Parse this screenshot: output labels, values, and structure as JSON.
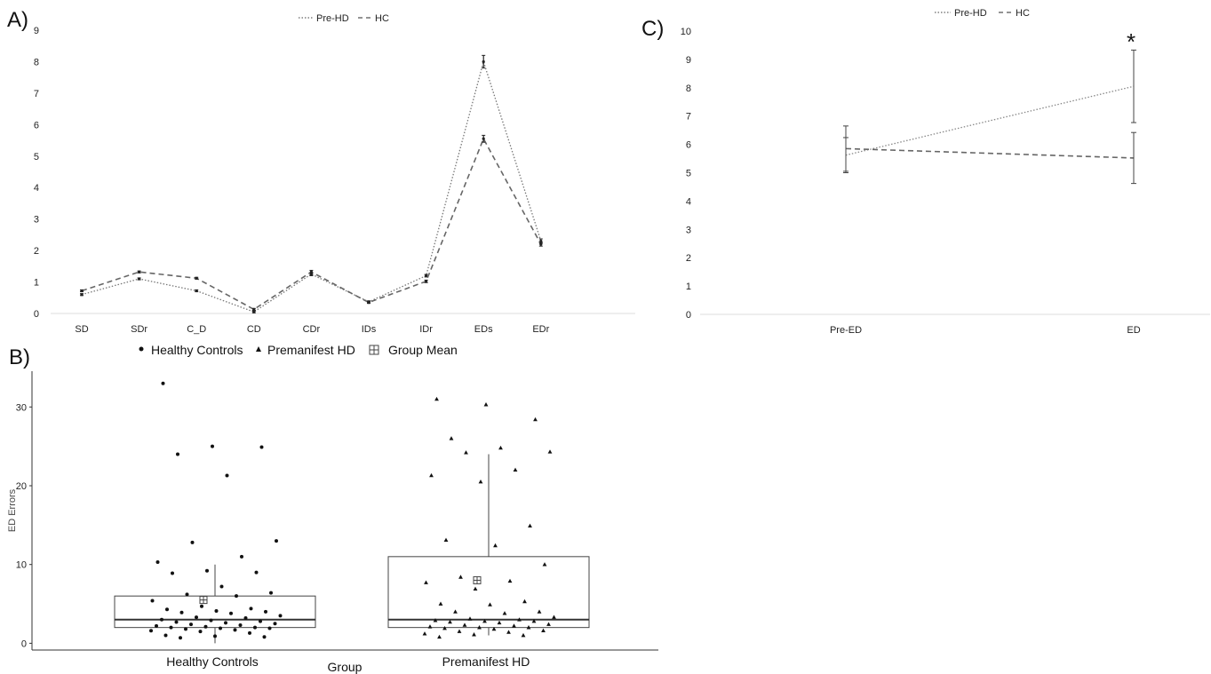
{
  "chart_data": [
    {
      "panel": "A)",
      "type": "line",
      "categories": [
        "SD",
        "SDr",
        "C_D",
        "CD",
        "CDr",
        "IDs",
        "IDr",
        "EDs",
        "EDr"
      ],
      "yticks": [
        "0",
        "1",
        "2",
        "3",
        "4",
        "5",
        "6",
        "7",
        "8",
        "9"
      ],
      "ylim": [
        0,
        9
      ],
      "legend": [
        "Pre-HD",
        "HC"
      ],
      "legend_position": "top-center",
      "series": [
        {
          "name": "Pre-HD",
          "style": "dotted",
          "values": [
            0.6,
            1.1,
            0.72,
            0.05,
            1.25,
            0.37,
            1.2,
            8.0,
            2.3
          ],
          "err": [
            0.03,
            0.03,
            0.03,
            0.03,
            0.05,
            0.03,
            0.04,
            0.2,
            0.07
          ]
        },
        {
          "name": "HC",
          "style": "dashed",
          "values": [
            0.72,
            1.32,
            1.12,
            0.13,
            1.32,
            0.35,
            1.02,
            5.55,
            2.2
          ],
          "err": [
            0.03,
            0.03,
            0.03,
            0.03,
            0.05,
            0.03,
            0.04,
            0.11,
            0.06
          ]
        }
      ]
    },
    {
      "panel": "B)",
      "type": "scatter",
      "ylabel": "ED Errors",
      "xlabel": "Group",
      "categories": [
        "Healthy Controls",
        "Premanifest HD"
      ],
      "yticks": [
        "0",
        "10",
        "20",
        "30"
      ],
      "ylim": [
        -1,
        35
      ],
      "legend": [
        "Healthy Controls",
        "Premanifest HD",
        "Group Mean"
      ],
      "legend_position": "top",
      "boxes": [
        {
          "name": "Healthy Controls",
          "q1": 2,
          "median": 3,
          "q3": 6,
          "whisker_low": 0,
          "whisker_high": 10,
          "mean": 5.5
        },
        {
          "name": "Premanifest HD",
          "q1": 2,
          "median": 3,
          "q3": 11,
          "whisker_low": 1,
          "whisker_high": 24,
          "mean": 8
        }
      ],
      "points": [
        {
          "group": "Healthy Controls",
          "values": [
            33,
            25,
            24.9,
            24,
            21.3,
            13,
            12.8,
            11,
            10.3,
            9.2,
            9,
            8.9,
            7.2,
            6.4,
            6.2,
            6,
            5.4,
            4.7,
            4.4,
            4.3,
            4.1,
            4,
            3.9,
            3.8,
            3.5,
            3.3,
            3.2,
            3,
            2.9,
            2.8,
            2.7,
            2.6,
            2.5,
            2.4,
            2.3,
            2.2,
            2.1,
            2,
            2,
            1.9,
            1.9,
            1.8,
            1.7,
            1.6,
            1.5,
            1.3,
            1,
            0.9,
            0.8,
            0.7
          ]
        },
        {
          "group": "Premanifest HD",
          "values": [
            31,
            30.3,
            28.4,
            26,
            24.8,
            24.3,
            24.2,
            22,
            21.3,
            20.5,
            14.9,
            13.1,
            12.4,
            10,
            8.4,
            7.9,
            7.7,
            6.9,
            5.3,
            5,
            4.9,
            4,
            4,
            3.8,
            3.3,
            3.1,
            3,
            2.9,
            2.8,
            2.8,
            2.7,
            2.6,
            2.4,
            2.3,
            2.2,
            2.1,
            2,
            2,
            1.9,
            1.8,
            1.6,
            1.5,
            1.4,
            1.2,
            1.1,
            1,
            0.8
          ]
        }
      ]
    },
    {
      "panel": "C)",
      "type": "line",
      "categories": [
        "Pre-ED",
        "ED"
      ],
      "yticks": [
        "0",
        "1",
        "2",
        "3",
        "4",
        "5",
        "6",
        "7",
        "8",
        "9",
        "10"
      ],
      "ylim": [
        0,
        10
      ],
      "legend": [
        "Pre-HD",
        "HC"
      ],
      "legend_position": "top-center",
      "annotation": "*",
      "series": [
        {
          "name": "Pre-HD",
          "style": "dotted",
          "values": [
            5.62,
            8.05
          ],
          "err": [
            0.62,
            1.28
          ]
        },
        {
          "name": "HC",
          "style": "dashed",
          "values": [
            5.85,
            5.52
          ],
          "err": [
            0.8,
            0.9
          ]
        }
      ]
    }
  ]
}
